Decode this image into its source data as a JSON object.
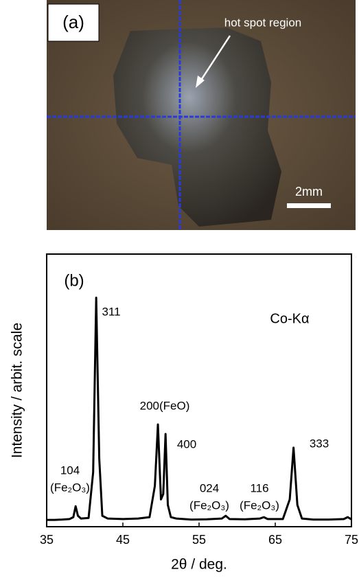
{
  "photo": {
    "label": "(a)",
    "annotation": "hot spot region",
    "scale_bar": "2mm"
  },
  "chart_data": {
    "type": "line",
    "xlabel": "2θ / deg.",
    "ylabel": "Intensity / arbit. scale",
    "annotations": [
      "(b)",
      "Co-Kα",
      "311",
      "200(FeO)",
      "400",
      "333",
      "104",
      "(Fe₂O₃)",
      "024",
      "(Fe₂O₃)",
      "116",
      "(Fe₂O₃)"
    ],
    "xlim": [
      35,
      75
    ],
    "xticks": [
      35,
      45,
      55,
      65,
      75
    ],
    "ylim": [
      0,
      100
    ],
    "series": [
      {
        "color": "#000000",
        "x": [
          35,
          36,
          37,
          38,
          38.5,
          38.8,
          39.1,
          39.5,
          40.5,
          41.1,
          41.5,
          41.9,
          42.3,
          43,
          45,
          47,
          48.5,
          49.2,
          49.6,
          50.0,
          50.3,
          50.6,
          50.9,
          51.3,
          52,
          54,
          56,
          58,
          58.5,
          59,
          61,
          63,
          63.5,
          64,
          66,
          66.9,
          67.4,
          67.9,
          68.5,
          70,
          72,
          74,
          74.5,
          75
        ],
        "values": [
          2.5,
          2.5,
          2.6,
          2.8,
          3.5,
          7.5,
          4,
          3,
          3.2,
          20,
          84,
          25,
          4,
          3,
          2.8,
          3,
          3.5,
          15,
          37.5,
          10,
          12,
          34,
          8,
          3.5,
          3,
          2.6,
          2.7,
          3,
          4,
          2.8,
          2.7,
          3,
          3.5,
          2.8,
          2.8,
          10,
          29,
          8,
          3,
          2.6,
          2.6,
          2.8,
          3.5,
          2.7
        ]
      }
    ]
  }
}
